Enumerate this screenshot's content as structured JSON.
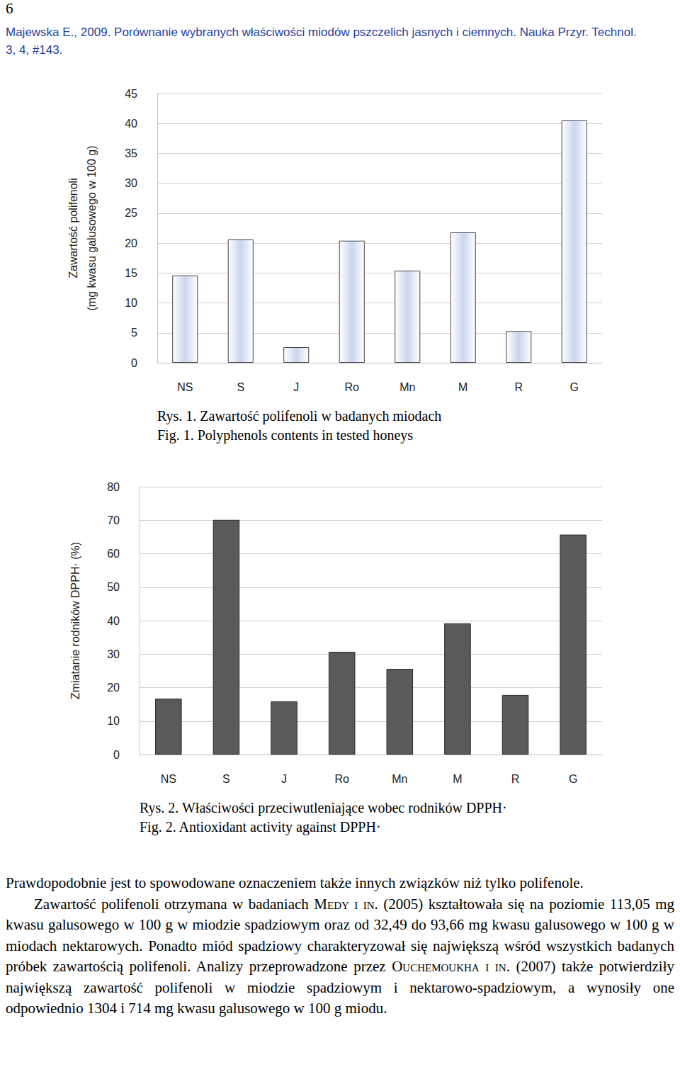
{
  "page_number": "6",
  "header": "Majewska E., 2009. Porównanie wybranych właściwości miodów pszczelich jasnych i ciemnych. Nauka Przyr. Technol. 3, 4, #143.",
  "chart_data": [
    {
      "type": "bar",
      "ylabel": [
        "Zawartość polifenoli",
        "(mg kwasu galusowego w 100 g)"
      ],
      "categories": [
        "NS",
        "S",
        "J",
        "Ro",
        "Mn",
        "M",
        "R",
        "G"
      ],
      "values": [
        14.6,
        20.6,
        2.6,
        20.4,
        15.4,
        21.8,
        5.3,
        40.5
      ],
      "color": "#c9d5ee",
      "ylim": [
        0,
        45
      ],
      "yticks": [
        0,
        5,
        10,
        15,
        20,
        25,
        30,
        35,
        40,
        45
      ],
      "grid": true
    },
    {
      "type": "bar",
      "ylabel": [
        "Zmiatanie rodników DPPH· (%)"
      ],
      "categories": [
        "NS",
        "S",
        "J",
        "Ro",
        "Mn",
        "M",
        "R",
        "G"
      ],
      "values": [
        16.7,
        70.1,
        15.9,
        30.7,
        25.6,
        39.2,
        17.8,
        65.7
      ],
      "color": "#5a5a5a",
      "ylim": [
        0,
        80
      ],
      "yticks": [
        0,
        10,
        20,
        30,
        40,
        50,
        60,
        70,
        80
      ],
      "grid": true
    }
  ],
  "captions": [
    [
      "Rys. 1. Zawartość polifenoli w badanych miodach",
      "Fig. 1. Polyphenols contents in tested honeys"
    ],
    [
      "Rys. 2. Właściwości przeciwutleniające wobec rodników DPPH·",
      "Fig. 2. Antioxidant activity against DPPH·"
    ]
  ],
  "paragraphs": [
    [
      "Prawdopodobnie jest to spowodowane oznaczeniem także innych związków niż tylko polifenole."
    ],
    [
      "Zawartość polifenoli otrzymana w badaniach ",
      {
        "smallcaps": "Medy i in."
      },
      " (2005) kształtowała się na poziomie 113,05 mg kwasu galusowego w 100 g w miodzie spadziowym oraz od 32,49 do 93,66 mg kwasu galusowego w 100 g w miodach nektarowych. Ponadto miód spadziowy charakteryzował się największą wśród wszystkich badanych próbek zawartością polifenoli. Analizy przeprowadzone przez ",
      {
        "smallcaps": "Ouchemoukha i in."
      },
      " (2007) także potwierdziły największą zawartość polifenoli w miodzie spadziowym i nektarowo-spadziowym, a wynosiły one odpowiednio 1304 i 714 mg kwasu galusowego w 100 g miodu."
    ]
  ]
}
